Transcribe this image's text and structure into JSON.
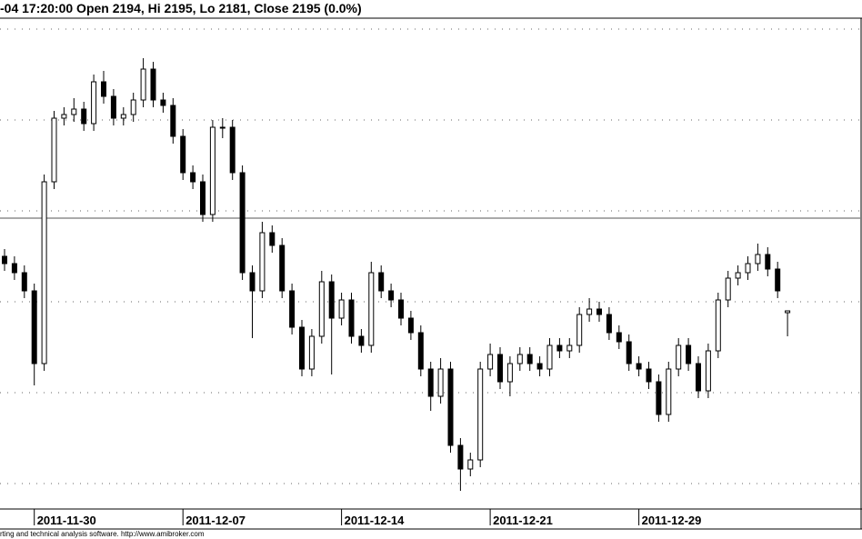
{
  "chart_data": {
    "type": "candlestick",
    "header": "-04 17:20:00 Open 2194, Hi 2195, Lo 2181, Close 2195 (0.0%)",
    "footer": "rting and technical analysis software. http://www.amibroker.com",
    "categories": [
      null,
      null,
      null,
      "2011-11-30",
      null,
      null,
      null,
      null,
      null,
      null,
      null,
      null,
      null,
      null,
      null,
      null,
      null,
      null,
      "2011-12-07",
      null,
      null,
      null,
      null,
      null,
      null,
      null,
      null,
      null,
      null,
      null,
      null,
      null,
      null,
      null,
      "2011-12-14",
      null,
      null,
      null,
      null,
      null,
      null,
      null,
      null,
      null,
      null,
      null,
      null,
      null,
      null,
      "2011-12-21",
      null,
      null,
      null,
      null,
      null,
      null,
      null,
      null,
      null,
      null,
      null,
      null,
      null,
      null,
      "2011-12-29",
      null,
      null,
      null,
      null,
      null,
      null,
      null,
      null,
      null,
      null,
      null,
      null,
      null,
      null,
      null
    ],
    "open": [
      2225,
      2221,
      2216,
      2206,
      2166,
      2266,
      2301,
      2303,
      2306,
      2298,
      2321,
      2313,
      2301,
      2303,
      2311,
      2328,
      2311,
      2308,
      2291,
      2271,
      2266,
      2248,
      2296,
      2296,
      2271,
      2216,
      2206,
      2238,
      2231,
      2206,
      2186,
      2163,
      2181,
      2211,
      2191,
      2201,
      2181,
      2176,
      2216,
      2206,
      2201,
      2191,
      2183,
      2163,
      2148,
      2163,
      2121,
      2108,
      2113,
      2163,
      2171,
      2156,
      2166,
      2171,
      2166,
      2163,
      2176,
      2173,
      2176,
      2193,
      2196,
      2193,
      2183,
      2178,
      2166,
      2163,
      2156,
      2138,
      2163,
      2176,
      2166,
      2151,
      2173,
      2201,
      2213,
      2216,
      2221,
      2226,
      2218,
      2194
    ],
    "high": [
      2229,
      2225,
      2220,
      2210,
      2270,
      2305,
      2307,
      2312,
      2310,
      2325,
      2327,
      2317,
      2307,
      2315,
      2334,
      2332,
      2315,
      2312,
      2295,
      2275,
      2270,
      2300,
      2301,
      2300,
      2275,
      2220,
      2244,
      2242,
      2235,
      2210,
      2190,
      2185,
      2217,
      2215,
      2205,
      2205,
      2185,
      2222,
      2220,
      2210,
      2205,
      2195,
      2187,
      2167,
      2169,
      2167,
      2125,
      2117,
      2167,
      2177,
      2175,
      2170,
      2175,
      2175,
      2170,
      2180,
      2180,
      2180,
      2197,
      2202,
      2200,
      2197,
      2187,
      2182,
      2170,
      2167,
      2160,
      2167,
      2180,
      2180,
      2170,
      2177,
      2205,
      2217,
      2220,
      2225,
      2232,
      2230,
      2222,
      2195
    ],
    "low": [
      2217,
      2212,
      2202,
      2154,
      2162,
      2262,
      2297,
      2299,
      2294,
      2294,
      2309,
      2297,
      2297,
      2299,
      2307,
      2307,
      2304,
      2287,
      2267,
      2262,
      2244,
      2244,
      2290,
      2267,
      2212,
      2180,
      2202,
      2227,
      2202,
      2182,
      2159,
      2159,
      2177,
      2160,
      2187,
      2177,
      2172,
      2172,
      2202,
      2197,
      2187,
      2179,
      2159,
      2140,
      2144,
      2117,
      2096,
      2104,
      2109,
      2159,
      2152,
      2148,
      2162,
      2162,
      2159,
      2159,
      2169,
      2169,
      2172,
      2189,
      2189,
      2179,
      2174,
      2162,
      2159,
      2152,
      2134,
      2134,
      2159,
      2162,
      2147,
      2147,
      2169,
      2197,
      2209,
      2212,
      2217,
      2214,
      2202,
      2181
    ],
    "close": [
      2221,
      2216,
      2206,
      2166,
      2266,
      2301,
      2303,
      2306,
      2298,
      2321,
      2313,
      2301,
      2303,
      2311,
      2328,
      2311,
      2308,
      2291,
      2271,
      2266,
      2248,
      2296,
      2296,
      2271,
      2216,
      2206,
      2238,
      2231,
      2206,
      2186,
      2163,
      2181,
      2211,
      2191,
      2201,
      2181,
      2176,
      2216,
      2206,
      2201,
      2191,
      2183,
      2163,
      2148,
      2163,
      2121,
      2108,
      2113,
      2163,
      2171,
      2156,
      2166,
      2171,
      2166,
      2163,
      2176,
      2173,
      2176,
      2193,
      2196,
      2193,
      2183,
      2178,
      2166,
      2163,
      2156,
      2138,
      2163,
      2176,
      2166,
      2151,
      2173,
      2201,
      2213,
      2216,
      2221,
      2226,
      2218,
      2206,
      2195
    ],
    "ylim": [
      2086,
      2356
    ],
    "grid_lines": [
      2350,
      2300,
      2250,
      2200,
      2150,
      2100
    ],
    "hline": 2246,
    "color": "#000000"
  }
}
